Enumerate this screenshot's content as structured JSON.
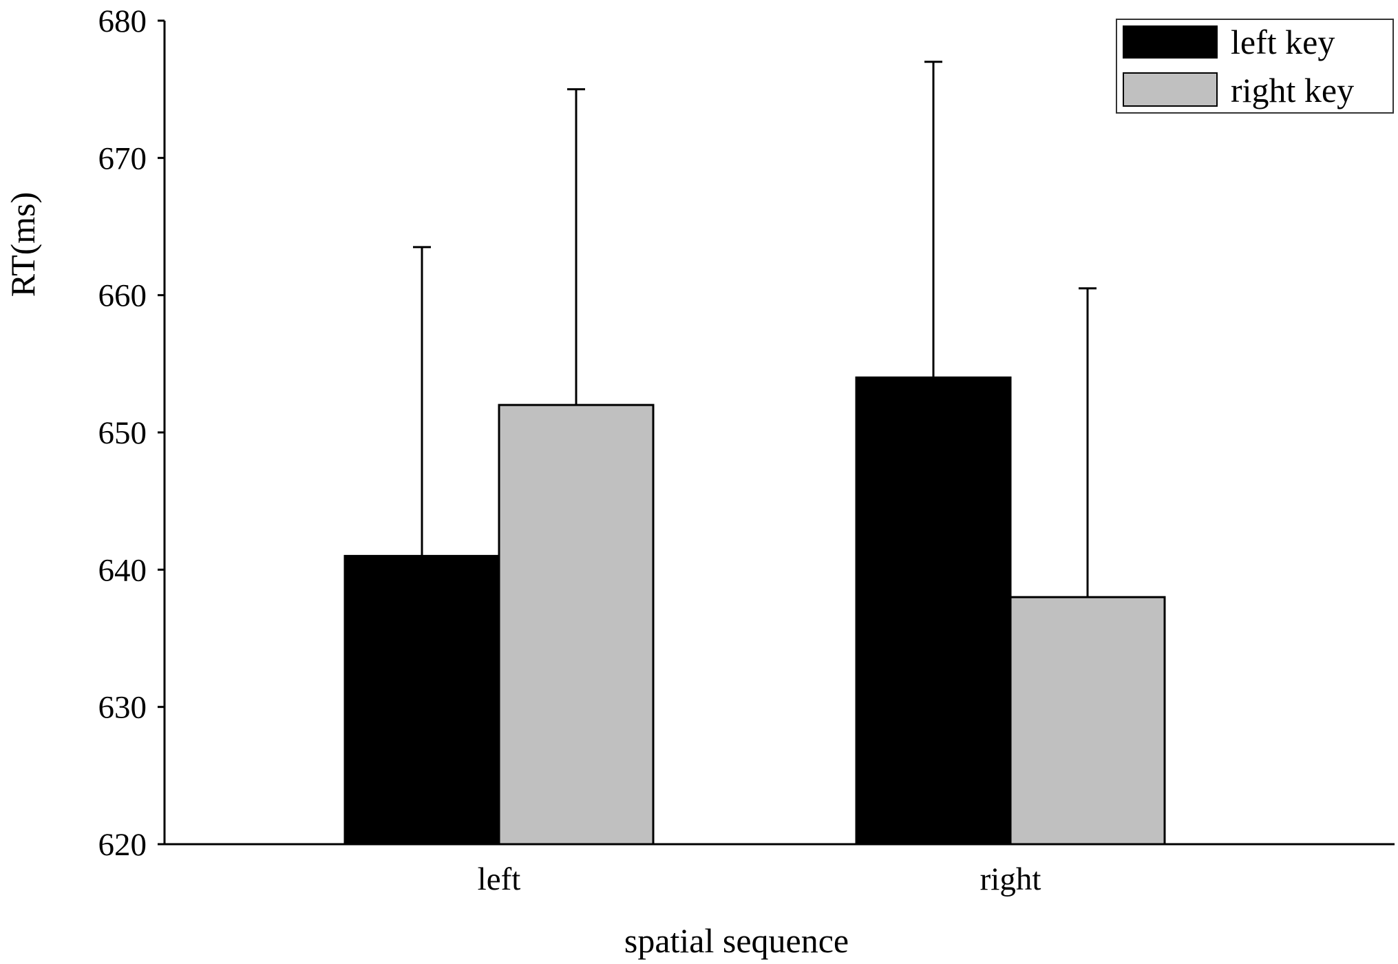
{
  "chart_data": {
    "type": "bar",
    "title": "",
    "xlabel": "spatial sequence",
    "ylabel": "RT(ms)",
    "ylim": [
      620,
      680
    ],
    "yticks": [
      620,
      630,
      640,
      650,
      660,
      670,
      680
    ],
    "categories": [
      "left",
      "right"
    ],
    "grid": false,
    "legend_position": "top-right",
    "series": [
      {
        "name": "left key",
        "color": "#000000",
        "values": [
          641,
          654
        ],
        "error": [
          22.5,
          23
        ]
      },
      {
        "name": "right key",
        "color": "#c0c0c0",
        "values": [
          652,
          638
        ],
        "error": [
          23,
          22.5
        ]
      }
    ]
  }
}
